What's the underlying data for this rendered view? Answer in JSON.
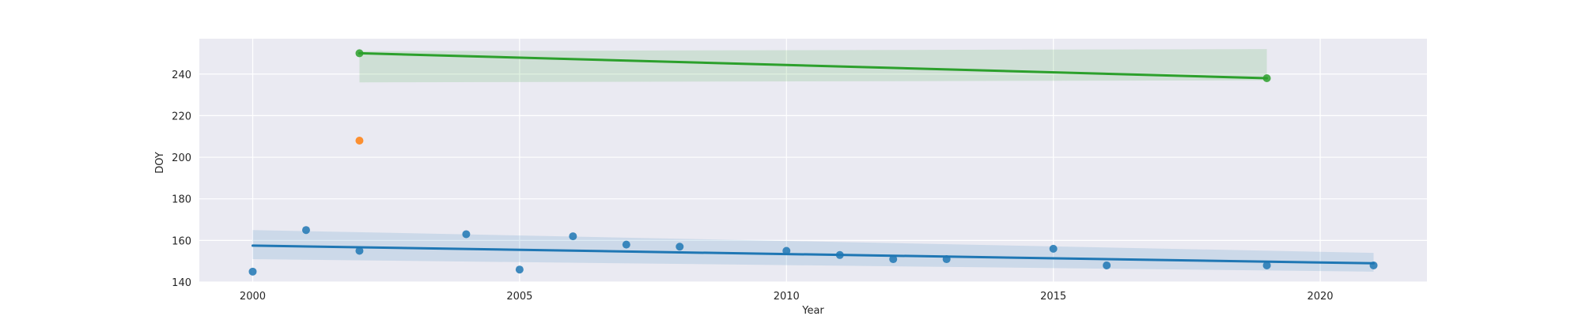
{
  "chart_data": {
    "type": "scatter",
    "title": "",
    "xlabel": "Year",
    "ylabel": "DOY",
    "xlim": [
      1999.0,
      2022.0
    ],
    "ylim": [
      140,
      257
    ],
    "xticks": [
      2000,
      2005,
      2010,
      2015,
      2020
    ],
    "yticks": [
      140,
      160,
      180,
      200,
      220,
      240
    ],
    "grid": true,
    "background": "#eaeaf2",
    "series": [
      {
        "color": "#1f77b4",
        "points": [
          [
            2000,
            145
          ],
          [
            2001,
            165
          ],
          [
            2002,
            155
          ],
          [
            2004,
            163
          ],
          [
            2005,
            146
          ],
          [
            2006,
            162
          ],
          [
            2007,
            158
          ],
          [
            2008,
            157
          ],
          [
            2010,
            155
          ],
          [
            2011,
            153
          ],
          [
            2012,
            151
          ],
          [
            2013,
            151
          ],
          [
            2015,
            156
          ],
          [
            2016,
            148
          ],
          [
            2019,
            148
          ],
          [
            2021,
            148
          ]
        ],
        "fit": {
          "x": [
            2000,
            2021
          ],
          "y": [
            157.5,
            149
          ]
        },
        "band": {
          "x": [
            2000,
            2021
          ],
          "upper": [
            165,
            154
          ],
          "lower": [
            151,
            145
          ]
        }
      },
      {
        "color": "#ff7f0e",
        "points": [
          [
            2002,
            208
          ]
        ]
      },
      {
        "color": "#2ca02c",
        "points": [
          [
            2002,
            250
          ],
          [
            2019,
            238
          ]
        ],
        "fit": {
          "x": [
            2002,
            2019
          ],
          "y": [
            250,
            238
          ]
        },
        "band": {
          "x": [
            2002,
            2019
          ],
          "upper": [
            251,
            252
          ],
          "lower": [
            236,
            237
          ]
        }
      }
    ]
  }
}
